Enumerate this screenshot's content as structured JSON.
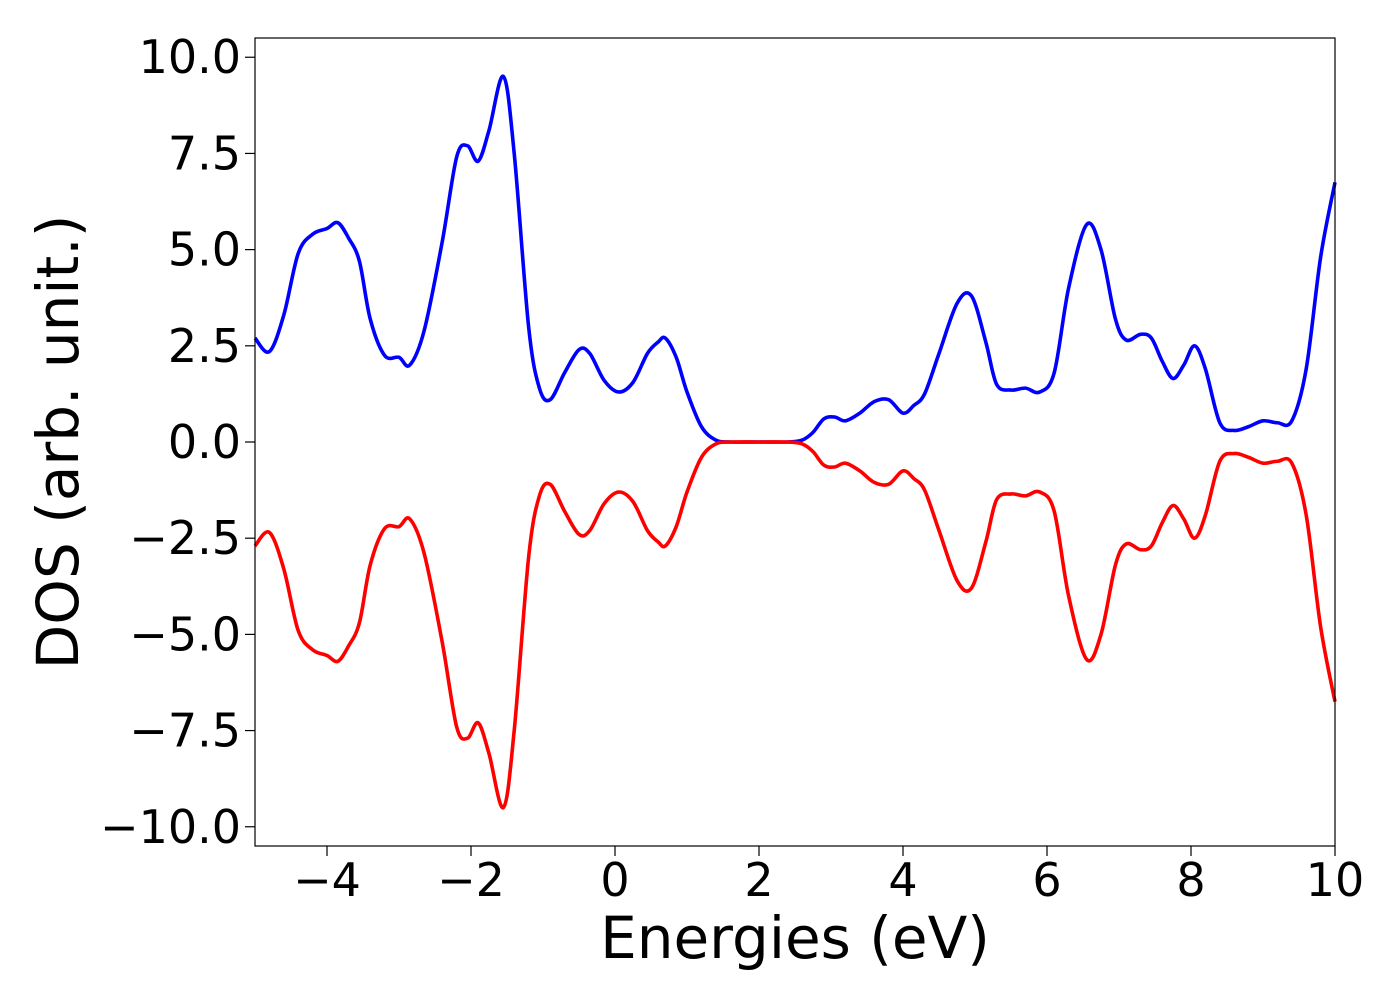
{
  "chart_data": {
    "type": "line",
    "title": "",
    "xlabel": "Energies (eV)",
    "ylabel": "DOS (arb. unit.)",
    "xlim": [
      -5,
      10
    ],
    "ylim": [
      -10.5,
      10.5
    ],
    "xticks": [
      -4,
      -2,
      0,
      2,
      4,
      6,
      8,
      10
    ],
    "xtick_labels": [
      "−4",
      "−2",
      "0",
      "2",
      "4",
      "6",
      "8",
      "10"
    ],
    "yticks": [
      10,
      7.5,
      5,
      2.5,
      0,
      -2.5,
      -5,
      -7.5,
      -10
    ],
    "ytick_labels": [
      "10.0",
      "7.5",
      "5.0",
      "2.5",
      "0.0",
      "−2.5",
      "−5.0",
      "−7.5",
      "−10.0"
    ],
    "grid": false,
    "legend": "none",
    "series": [
      {
        "color": "#0000ff",
        "x": [
          -5.0,
          -4.8,
          -4.6,
          -4.4,
          -4.2,
          -4.0,
          -3.85,
          -3.7,
          -3.55,
          -3.4,
          -3.2,
          -3.0,
          -2.85,
          -2.65,
          -2.4,
          -2.2,
          -2.05,
          -1.9,
          -1.75,
          -1.55,
          -1.4,
          -1.2,
          -1.05,
          -0.9,
          -0.7,
          -0.5,
          -0.35,
          -0.15,
          0.05,
          0.25,
          0.45,
          0.6,
          0.7,
          0.85,
          1.0,
          1.2,
          1.4,
          1.6,
          2.0,
          2.4,
          2.6,
          2.75,
          2.9,
          3.05,
          3.2,
          3.4,
          3.6,
          3.8,
          4.0,
          4.15,
          4.3,
          4.5,
          4.75,
          4.95,
          5.15,
          5.3,
          5.5,
          5.7,
          5.9,
          6.1,
          6.3,
          6.55,
          6.75,
          6.95,
          7.1,
          7.3,
          7.45,
          7.6,
          7.75,
          7.9,
          8.05,
          8.2,
          8.4,
          8.6,
          8.8,
          9.0,
          9.2,
          9.4,
          9.6,
          9.8,
          10.0
        ],
        "y": [
          2.7,
          2.35,
          3.3,
          4.9,
          5.4,
          5.55,
          5.7,
          5.3,
          4.7,
          3.2,
          2.25,
          2.2,
          2.0,
          2.9,
          5.2,
          7.4,
          7.7,
          7.3,
          8.1,
          9.5,
          7.5,
          3.0,
          1.4,
          1.1,
          1.8,
          2.4,
          2.3,
          1.6,
          1.3,
          1.55,
          2.3,
          2.6,
          2.7,
          2.2,
          1.3,
          0.4,
          0.05,
          0.0,
          0.0,
          0.0,
          0.05,
          0.25,
          0.6,
          0.65,
          0.55,
          0.75,
          1.05,
          1.1,
          0.75,
          0.95,
          1.25,
          2.3,
          3.6,
          3.8,
          2.6,
          1.5,
          1.35,
          1.4,
          1.3,
          1.8,
          4.0,
          5.65,
          5.0,
          3.2,
          2.65,
          2.8,
          2.7,
          2.1,
          1.65,
          2.0,
          2.5,
          1.9,
          0.5,
          0.3,
          0.4,
          0.55,
          0.5,
          0.55,
          1.9,
          4.8,
          6.75
        ]
      },
      {
        "color": "#ff0000",
        "x": [
          -5.0,
          -4.8,
          -4.6,
          -4.4,
          -4.2,
          -4.0,
          -3.85,
          -3.7,
          -3.55,
          -3.4,
          -3.2,
          -3.0,
          -2.85,
          -2.65,
          -2.4,
          -2.2,
          -2.05,
          -1.9,
          -1.75,
          -1.55,
          -1.4,
          -1.2,
          -1.05,
          -0.9,
          -0.7,
          -0.5,
          -0.35,
          -0.15,
          0.05,
          0.25,
          0.45,
          0.6,
          0.7,
          0.85,
          1.0,
          1.2,
          1.4,
          1.6,
          2.0,
          2.4,
          2.6,
          2.75,
          2.9,
          3.05,
          3.2,
          3.4,
          3.6,
          3.8,
          4.0,
          4.15,
          4.3,
          4.5,
          4.75,
          4.95,
          5.15,
          5.3,
          5.5,
          5.7,
          5.9,
          6.1,
          6.3,
          6.55,
          6.75,
          6.95,
          7.1,
          7.3,
          7.45,
          7.6,
          7.75,
          7.9,
          8.05,
          8.2,
          8.4,
          8.6,
          8.8,
          9.0,
          9.2,
          9.4,
          9.6,
          9.8,
          10.0
        ],
        "y": [
          -2.7,
          -2.35,
          -3.3,
          -4.9,
          -5.4,
          -5.55,
          -5.7,
          -5.3,
          -4.7,
          -3.2,
          -2.25,
          -2.2,
          -2.0,
          -2.9,
          -5.2,
          -7.4,
          -7.7,
          -7.3,
          -8.1,
          -9.5,
          -7.5,
          -3.0,
          -1.4,
          -1.1,
          -1.8,
          -2.4,
          -2.3,
          -1.6,
          -1.3,
          -1.55,
          -2.3,
          -2.6,
          -2.7,
          -2.2,
          -1.3,
          -0.4,
          -0.05,
          0.0,
          0.0,
          0.0,
          -0.05,
          -0.25,
          -0.6,
          -0.65,
          -0.55,
          -0.75,
          -1.05,
          -1.1,
          -0.75,
          -0.95,
          -1.25,
          -2.3,
          -3.6,
          -3.8,
          -2.6,
          -1.5,
          -1.35,
          -1.4,
          -1.3,
          -1.8,
          -4.0,
          -5.65,
          -5.0,
          -3.2,
          -2.65,
          -2.8,
          -2.7,
          -2.1,
          -1.65,
          -2.0,
          -2.5,
          -1.9,
          -0.5,
          -0.3,
          -0.4,
          -0.55,
          -0.5,
          -0.55,
          -1.9,
          -4.8,
          -6.75
        ]
      }
    ]
  }
}
